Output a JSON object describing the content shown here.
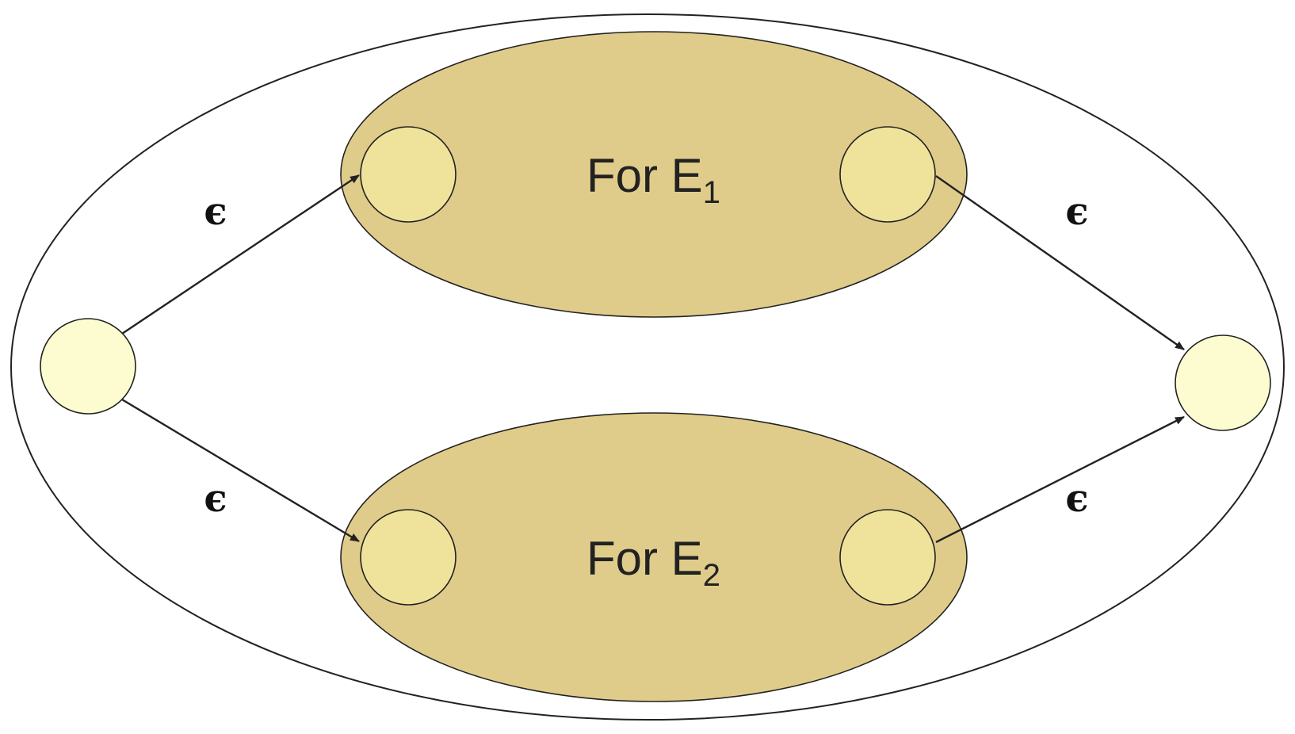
{
  "colors": {
    "outer_fill": "#ffffff",
    "sub_automaton_fill": "#e0cc8a",
    "inner_state_fill": "#efe39c",
    "outer_state_fill": "#fdfbd0",
    "stroke": "#222222"
  },
  "sub_automata": [
    {
      "label_prefix": "For E",
      "label_subscript": "1"
    },
    {
      "label_prefix": "For E",
      "label_subscript": "2"
    }
  ],
  "edges": [
    {
      "label": "ϵ"
    },
    {
      "label": "ϵ"
    },
    {
      "label": "ϵ"
    },
    {
      "label": "ϵ"
    }
  ]
}
